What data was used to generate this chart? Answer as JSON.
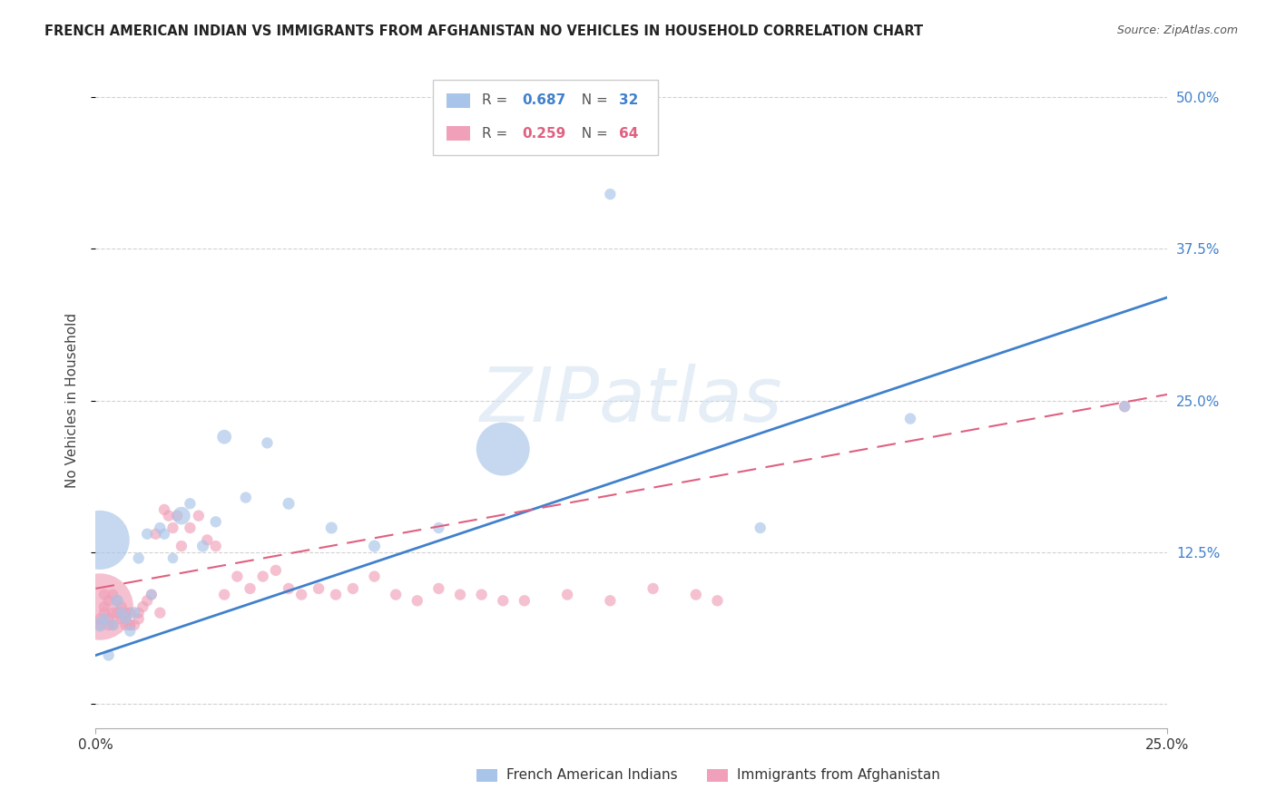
{
  "title": "FRENCH AMERICAN INDIAN VS IMMIGRANTS FROM AFGHANISTAN NO VEHICLES IN HOUSEHOLD CORRELATION CHART",
  "source": "Source: ZipAtlas.com",
  "ylabel": "No Vehicles in Household",
  "watermark": "ZIPatlas",
  "xmin": 0.0,
  "xmax": 0.25,
  "ymin": -0.02,
  "ymax": 0.52,
  "legend_blue_r": "R = 0.687",
  "legend_blue_n": "N = 32",
  "legend_pink_r": "R = 0.259",
  "legend_pink_n": "N = 64",
  "label_blue": "French American Indians",
  "label_pink": "Immigrants from Afghanistan",
  "blue_color": "#a8c4e8",
  "pink_color": "#f0a0b8",
  "blue_line_color": "#4080cc",
  "pink_line_color": "#e06080",
  "blue_trend_x": [
    0.0,
    0.25
  ],
  "blue_trend_y": [
    0.04,
    0.335
  ],
  "pink_trend_x": [
    0.0,
    0.25
  ],
  "pink_trend_y": [
    0.095,
    0.255
  ],
  "blue_x": [
    0.001,
    0.002,
    0.003,
    0.004,
    0.005,
    0.006,
    0.007,
    0.008,
    0.009,
    0.01,
    0.012,
    0.013,
    0.015,
    0.016,
    0.018,
    0.02,
    0.022,
    0.025,
    0.028,
    0.03,
    0.035,
    0.04,
    0.045,
    0.055,
    0.065,
    0.08,
    0.095,
    0.12,
    0.155,
    0.19,
    0.001,
    0.24
  ],
  "blue_y": [
    0.065,
    0.07,
    0.04,
    0.065,
    0.085,
    0.075,
    0.07,
    0.06,
    0.075,
    0.12,
    0.14,
    0.09,
    0.145,
    0.14,
    0.12,
    0.155,
    0.165,
    0.13,
    0.15,
    0.22,
    0.17,
    0.215,
    0.165,
    0.145,
    0.13,
    0.145,
    0.21,
    0.42,
    0.145,
    0.235,
    0.135,
    0.245
  ],
  "blue_sizes": [
    120,
    80,
    80,
    80,
    100,
    80,
    80,
    80,
    90,
    80,
    80,
    70,
    80,
    80,
    70,
    200,
    80,
    90,
    80,
    130,
    80,
    80,
    90,
    90,
    90,
    80,
    1800,
    80,
    80,
    80,
    2200,
    80
  ],
  "pink_x": [
    0.001,
    0.001,
    0.002,
    0.002,
    0.003,
    0.003,
    0.004,
    0.004,
    0.005,
    0.006,
    0.006,
    0.007,
    0.007,
    0.008,
    0.008,
    0.009,
    0.01,
    0.01,
    0.011,
    0.012,
    0.013,
    0.014,
    0.015,
    0.016,
    0.017,
    0.018,
    0.019,
    0.02,
    0.022,
    0.024,
    0.026,
    0.028,
    0.03,
    0.033,
    0.036,
    0.039,
    0.042,
    0.045,
    0.048,
    0.052,
    0.056,
    0.06,
    0.065,
    0.07,
    0.075,
    0.08,
    0.085,
    0.09,
    0.095,
    0.1,
    0.11,
    0.12,
    0.13,
    0.14,
    0.145,
    0.001,
    0.002,
    0.003,
    0.004,
    0.005,
    0.006,
    0.007,
    0.008,
    0.24
  ],
  "pink_y": [
    0.065,
    0.07,
    0.075,
    0.08,
    0.065,
    0.07,
    0.075,
    0.065,
    0.075,
    0.07,
    0.075,
    0.065,
    0.07,
    0.075,
    0.065,
    0.065,
    0.07,
    0.075,
    0.08,
    0.085,
    0.09,
    0.14,
    0.075,
    0.16,
    0.155,
    0.145,
    0.155,
    0.13,
    0.145,
    0.155,
    0.135,
    0.13,
    0.09,
    0.105,
    0.095,
    0.105,
    0.11,
    0.095,
    0.09,
    0.095,
    0.09,
    0.095,
    0.105,
    0.09,
    0.085,
    0.095,
    0.09,
    0.09,
    0.085,
    0.085,
    0.09,
    0.085,
    0.095,
    0.09,
    0.085,
    0.08,
    0.09,
    0.085,
    0.09,
    0.085,
    0.08,
    0.075,
    0.065,
    0.245
  ],
  "pink_sizes": [
    80,
    80,
    80,
    80,
    80,
    80,
    80,
    80,
    80,
    80,
    80,
    80,
    80,
    80,
    80,
    80,
    80,
    80,
    80,
    80,
    80,
    80,
    80,
    80,
    80,
    80,
    80,
    80,
    80,
    80,
    80,
    80,
    80,
    80,
    80,
    80,
    80,
    80,
    80,
    80,
    80,
    80,
    80,
    80,
    80,
    80,
    80,
    80,
    80,
    80,
    80,
    80,
    80,
    80,
    80,
    2800,
    80,
    80,
    80,
    80,
    80,
    80,
    80,
    80
  ]
}
